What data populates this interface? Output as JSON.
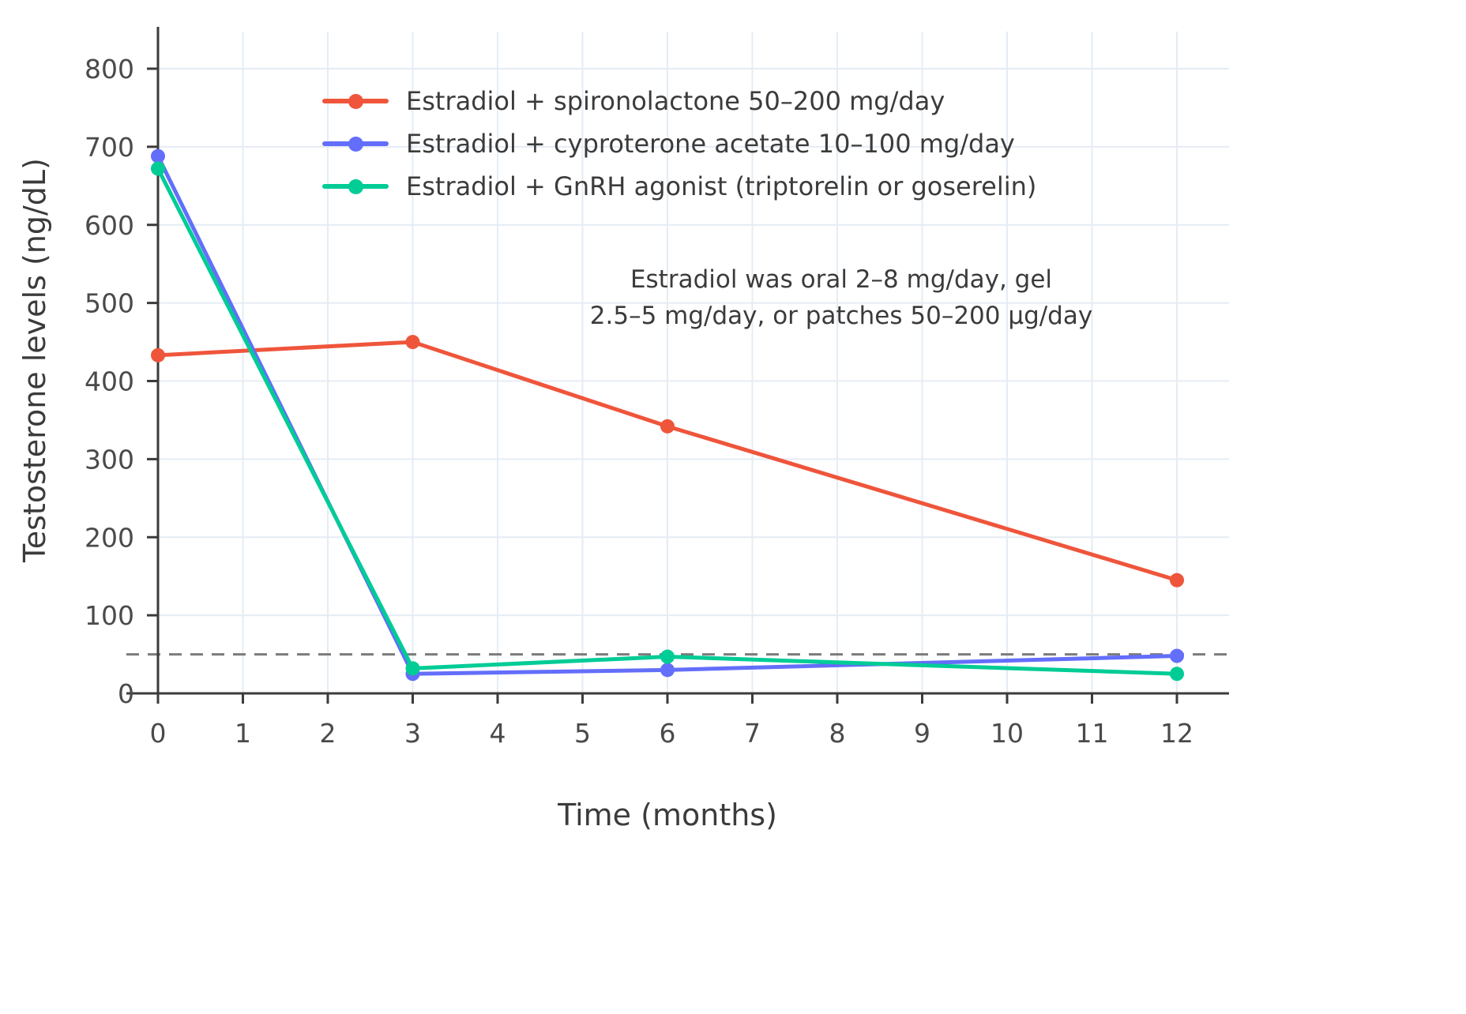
{
  "chart_data": {
    "type": "line",
    "title": "",
    "xlabel": "Time (months)",
    "ylabel": "Testosterone levels (ng/dL)",
    "x": [
      0,
      3,
      6,
      12
    ],
    "x_ticks": [
      0,
      1,
      2,
      3,
      4,
      5,
      6,
      7,
      8,
      9,
      10,
      11,
      12
    ],
    "y_ticks": [
      0,
      100,
      200,
      300,
      400,
      500,
      600,
      700,
      800
    ],
    "xlim": [
      0,
      12
    ],
    "ylim": [
      0,
      800
    ],
    "grid": true,
    "legend_position": "top-left-inside",
    "series": [
      {
        "name": "Estradiol + spironolactone 50–200 mg/day",
        "color": "#EF553B",
        "values": [
          433,
          450,
          342,
          145
        ]
      },
      {
        "name": "Estradiol + cyproterone acetate 10–100 mg/day",
        "color": "#636EFA",
        "values": [
          688,
          25,
          30,
          48
        ]
      },
      {
        "name": "Estradiol + GnRH agonist (triptorelin or goserelin)",
        "color": "#00CC96",
        "values": [
          672,
          32,
          47,
          25
        ]
      }
    ],
    "threshold_line": {
      "value": 50,
      "style": "dashed",
      "color": "#7B7B7B"
    },
    "annotation_lines": [
      "Estradiol was oral 2–8 mg/day, gel",
      "2.5–5 mg/day, or patches 50–200 µg/day"
    ],
    "colors": {
      "grid": "#E4ECF4",
      "axis": "#3B3B3B",
      "tick_text": "#4A4A4A",
      "background": "#FFFFFF"
    }
  }
}
